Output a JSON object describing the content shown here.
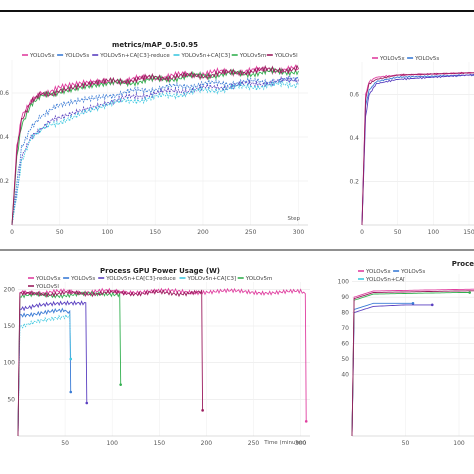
{
  "colors": {
    "YOLOv5x": "#e040a0",
    "YOLOv5s": "#3a7bd5",
    "YOLOv5n+CA[C3]-reduce": "#5a3fc0",
    "YOLOv5n+CA[C3]": "#3ec8e0",
    "YOLOv5m": "#33b050",
    "YOLOv5l": "#9b1c5e",
    "accent": "#e040a0"
  },
  "chart_data": [
    {
      "type": "line",
      "title": "metrics/mAP_0.5:0.95",
      "xlabel": "Step",
      "ylabel": "",
      "xlim": [
        0,
        310
      ],
      "ylim": [
        0,
        0.75
      ],
      "x_ticks": [
        "0",
        "50",
        "100",
        "150",
        "200",
        "250",
        "300"
      ],
      "y_ticks": [
        "0.2",
        "0.4",
        "0.6"
      ],
      "grid": true,
      "legend": "top-left",
      "series": [
        {
          "name": "YOLOv5x",
          "x": [
            0,
            5,
            10,
            20,
            30,
            50,
            75,
            100,
            150,
            200,
            250,
            300
          ],
          "values": [
            0.0,
            0.35,
            0.5,
            0.57,
            0.6,
            0.62,
            0.64,
            0.65,
            0.67,
            0.69,
            0.7,
            0.71
          ]
        },
        {
          "name": "YOLOv5s",
          "x": [
            0,
            5,
            10,
            20,
            30,
            50,
            75,
            100,
            150,
            200,
            250,
            300
          ],
          "values": [
            0.0,
            0.2,
            0.35,
            0.45,
            0.5,
            0.54,
            0.57,
            0.59,
            0.62,
            0.64,
            0.65,
            0.66
          ]
        },
        {
          "name": "YOLOv5n+CA[C3]-reduce",
          "x": [
            0,
            5,
            10,
            20,
            30,
            50,
            75,
            100,
            150,
            200,
            250,
            300
          ],
          "values": [
            0.0,
            0.15,
            0.3,
            0.4,
            0.44,
            0.49,
            0.53,
            0.56,
            0.6,
            0.62,
            0.64,
            0.66
          ]
        },
        {
          "name": "YOLOv5n+CA[C3]",
          "x": [
            0,
            5,
            10,
            20,
            30,
            50,
            75,
            100,
            150,
            200,
            250,
            300
          ],
          "values": [
            0.0,
            0.14,
            0.28,
            0.39,
            0.43,
            0.47,
            0.52,
            0.55,
            0.58,
            0.61,
            0.63,
            0.64
          ]
        },
        {
          "name": "YOLOv5m",
          "x": [
            0,
            5,
            10,
            20,
            30,
            50,
            75,
            100,
            150,
            200,
            250,
            300
          ],
          "values": [
            0.0,
            0.3,
            0.45,
            0.54,
            0.58,
            0.61,
            0.63,
            0.64,
            0.66,
            0.68,
            0.69,
            0.7
          ]
        },
        {
          "name": "YOLOv5l",
          "x": [
            0,
            5,
            10,
            20,
            30,
            50,
            75,
            100,
            150,
            200,
            250,
            300
          ],
          "values": [
            0.0,
            0.33,
            0.48,
            0.56,
            0.59,
            0.61,
            0.63,
            0.65,
            0.67,
            0.68,
            0.7,
            0.71
          ]
        }
      ]
    },
    {
      "type": "line",
      "title": "Process GPU Power Usage (W)",
      "xlabel": "Time (minutes)",
      "ylabel": "",
      "xlim": [
        0,
        310
      ],
      "ylim": [
        0,
        210
      ],
      "x_ticks": [
        "50",
        "100",
        "150",
        "200",
        "250",
        "300"
      ],
      "y_ticks": [
        "50",
        "100",
        "150",
        "200"
      ],
      "grid": true,
      "legend": "top-left",
      "series": [
        {
          "name": "YOLOv5x",
          "x": [
            0,
            2,
            20,
            100,
            200,
            300,
            305,
            306
          ],
          "values": [
            0,
            195,
            196,
            197,
            197,
            196,
            196,
            20
          ]
        },
        {
          "name": "YOLOv5s",
          "x": [
            0,
            2,
            20,
            50,
            55,
            56
          ],
          "values": [
            0,
            165,
            168,
            170,
            170,
            60
          ]
        },
        {
          "name": "YOLOv5n+CA[C3]-reduce",
          "x": [
            0,
            2,
            20,
            60,
            72,
            73
          ],
          "values": [
            0,
            175,
            178,
            180,
            182,
            45
          ]
        },
        {
          "name": "YOLOv5n+CA[C3]",
          "x": [
            0,
            2,
            20,
            45,
            55,
            56
          ],
          "values": [
            0,
            150,
            155,
            160,
            162,
            105
          ]
        },
        {
          "name": "YOLOv5m",
          "x": [
            0,
            2,
            20,
            80,
            108,
            109
          ],
          "values": [
            0,
            190,
            192,
            193,
            193,
            70
          ]
        },
        {
          "name": "YOLOv5l",
          "x": [
            0,
            2,
            20,
            100,
            195,
            196
          ],
          "values": [
            0,
            193,
            194,
            195,
            195,
            35
          ]
        }
      ]
    },
    {
      "type": "line",
      "title": "",
      "xlabel": "",
      "ylabel": "",
      "xlim": [
        0,
        460
      ],
      "ylim": [
        0,
        0.75
      ],
      "x_ticks": [
        "0",
        "50",
        "100",
        "150",
        "200",
        "250",
        "300"
      ],
      "y_ticks": [
        "0.2",
        "0.4",
        "0.6"
      ],
      "grid": true,
      "legend": "top-left",
      "series": [
        {
          "name": "YOLOv5x",
          "x": [
            0,
            5,
            10,
            20,
            50,
            150,
            300
          ],
          "values": [
            0.0,
            0.6,
            0.66,
            0.68,
            0.69,
            0.7,
            0.71
          ]
        },
        {
          "name": "YOLOv5s",
          "x": [
            0,
            5,
            10,
            20,
            50,
            150,
            300
          ],
          "values": [
            0.0,
            0.55,
            0.62,
            0.66,
            0.68,
            0.69,
            0.7
          ]
        },
        {
          "name": "YOLOv5n+CA[C3]-reduce",
          "x": [
            0,
            5,
            10,
            20,
            50,
            150,
            300
          ],
          "values": [
            0.0,
            0.5,
            0.6,
            0.65,
            0.67,
            0.69,
            0.7
          ]
        },
        {
          "name": "YOLOv5l",
          "x": [
            0,
            5,
            10,
            20,
            50,
            150,
            300
          ],
          "values": [
            0.0,
            0.58,
            0.65,
            0.67,
            0.69,
            0.7,
            0.71
          ]
        }
      ]
    },
    {
      "type": "line",
      "title": "Proce",
      "xlabel": "",
      "ylabel": "",
      "xlim": [
        0,
        400
      ],
      "ylim": [
        0,
        105
      ],
      "x_ticks": [
        "50",
        "100",
        "150"
      ],
      "y_ticks": [
        "40",
        "50",
        "60",
        "70",
        "80",
        "90",
        "100"
      ],
      "grid": true,
      "legend": "top-left",
      "series": [
        {
          "name": "YOLOv5x",
          "x": [
            0,
            2,
            20,
            100,
            200,
            300,
            310
          ],
          "values": [
            0,
            90,
            94,
            95,
            96,
            96,
            96
          ]
        },
        {
          "name": "YOLOv5s",
          "x": [
            0,
            2,
            20,
            40,
            57
          ],
          "values": [
            0,
            82,
            86,
            86,
            86
          ]
        },
        {
          "name": "YOLOv5n+CA[C3]-reduce",
          "x": [
            0,
            2,
            20,
            50,
            75
          ],
          "values": [
            0,
            80,
            84,
            85,
            85
          ]
        },
        {
          "name": "YOLOv5m",
          "x": [
            0,
            2,
            20,
            100,
            110
          ],
          "values": [
            0,
            88,
            92,
            93,
            93
          ]
        },
        {
          "name": "YOLOv5l",
          "x": [
            0,
            2,
            20,
            100,
            200
          ],
          "values": [
            0,
            89,
            93,
            94,
            95
          ]
        }
      ]
    }
  ],
  "legends": {
    "top_left": [
      "YOLOv5x",
      "YOLOv5s",
      "YOLOv5n+CA[C3]-reduce",
      "YOLOv5n+CA[C3]",
      "YOLOv5m",
      "YOLOv5l"
    ],
    "bottom_left": [
      "YOLOv5x",
      "YOLOv5s",
      "YOLOv5n+CA[C3]-reduce",
      "YOLOv5n+CA[C3]",
      "YOLOv5m",
      "YOLOv5l"
    ],
    "top_right": [
      "YOLOv5x",
      "YOLOv5s"
    ],
    "bottom_right": [
      "YOLOv5x",
      "YOLOv5s",
      "YOLOv5n+CA["
    ]
  }
}
